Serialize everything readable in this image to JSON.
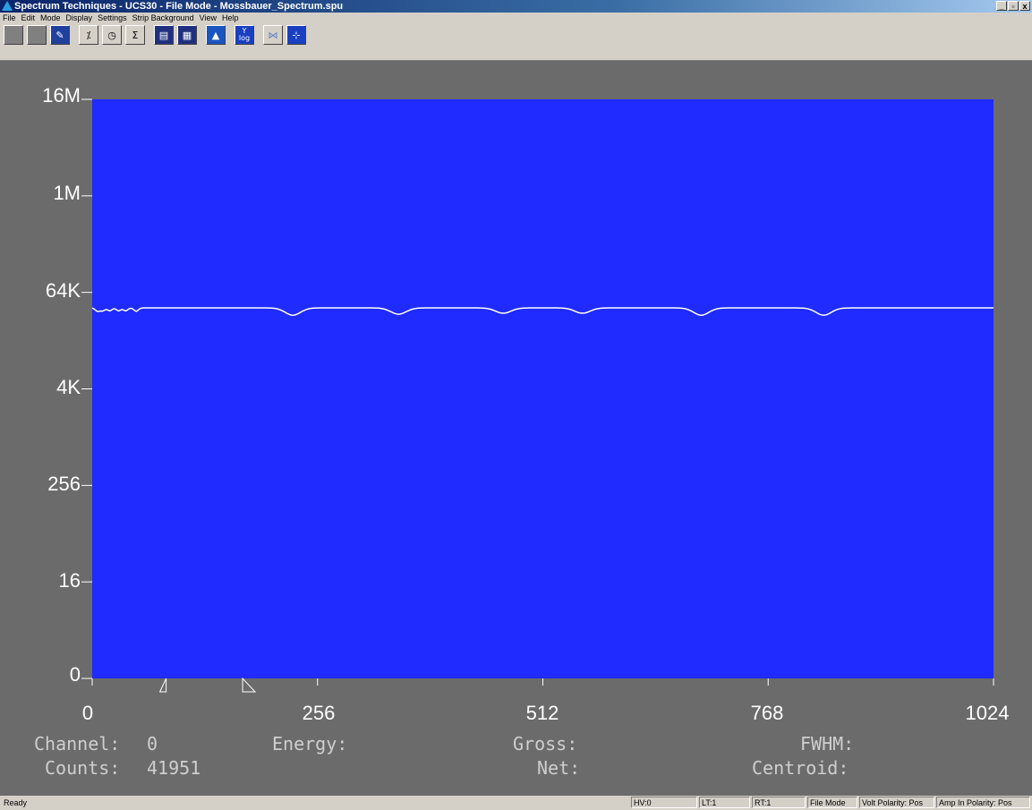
{
  "window": {
    "title": "Spectrum Techniques - UCS30 - File Mode - Mossbauer_Spectrum.spu",
    "controls": [
      "_",
      "▫",
      "x"
    ]
  },
  "menu": [
    "File",
    "Edit",
    "Mode",
    "Display",
    "Settings",
    "Strip Background",
    "View",
    "Help"
  ],
  "toolbar": {
    "log_button": "Y\nlog"
  },
  "chart_data": {
    "type": "line",
    "title": "",
    "xlabel": "",
    "ylabel": "",
    "x_ticks": [
      "0",
      "256",
      "512",
      "768",
      "1024"
    ],
    "y_ticks": [
      "16M",
      "1M",
      "64K",
      "4K",
      "256",
      "16",
      "0"
    ],
    "y_scale": "log",
    "xlim": [
      0,
      1024
    ],
    "background": "#1f2bff",
    "line_color": "#ffffff",
    "baseline_counts": 41951,
    "dips": [
      {
        "channel": 6,
        "min_counts": 38000
      },
      {
        "channel": 12,
        "min_counts": 38500
      },
      {
        "channel": 20,
        "min_counts": 38500
      },
      {
        "channel": 30,
        "min_counts": 38500
      },
      {
        "channel": 38,
        "min_counts": 38500
      },
      {
        "channel": 50,
        "min_counts": 38000
      },
      {
        "channel": 228,
        "min_counts": 34000
      },
      {
        "channel": 348,
        "min_counts": 35000
      },
      {
        "channel": 467,
        "min_counts": 36000
      },
      {
        "channel": 557,
        "min_counts": 36000
      },
      {
        "channel": 692,
        "min_counts": 34000
      },
      {
        "channel": 831,
        "min_counts": 34000
      }
    ],
    "region_markers": [
      84,
      178
    ]
  },
  "readouts": {
    "channel_label": "Channel:",
    "channel_value": "0",
    "counts_label": "Counts:",
    "counts_value": "41951",
    "energy_label": "Energy:",
    "gross_label": "Gross:",
    "net_label": "Net:",
    "fwhm_label": "FWHM:",
    "centroid_label": "Centroid:"
  },
  "status": {
    "ready": "Ready",
    "hv": "HV:0",
    "lt": "LT:1",
    "rt": "RT:1",
    "mode": "File Mode",
    "volt": "Volt Polarity: Pos",
    "amp": "Amp In Polarity: Pos"
  }
}
